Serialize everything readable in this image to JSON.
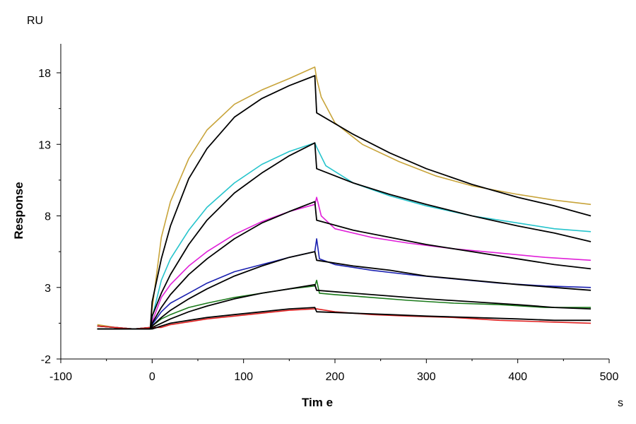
{
  "chart_data": {
    "type": "line",
    "title": "",
    "xlabel": "Tim e",
    "ylabel": "Response",
    "x_unit": "s",
    "y_unit": "RU",
    "xlim": [
      -100,
      500
    ],
    "ylim": [
      -2,
      20
    ],
    "x_ticks": [
      -100,
      0,
      100,
      200,
      300,
      400,
      500
    ],
    "y_ticks": [
      -2,
      3,
      8,
      13,
      18
    ],
    "grid": false,
    "legend": "none",
    "association_end": 180,
    "series": [
      {
        "color": "#c8a43a",
        "kind": "measured",
        "points": [
          [
            -60,
            0.4
          ],
          [
            -40,
            0.2
          ],
          [
            -20,
            0.1
          ],
          [
            -2,
            0.2
          ],
          [
            0,
            1.5
          ],
          [
            10,
            6.5
          ],
          [
            20,
            9.0
          ],
          [
            40,
            12.0
          ],
          [
            60,
            14.0
          ],
          [
            90,
            15.8
          ],
          [
            120,
            16.8
          ],
          [
            150,
            17.6
          ],
          [
            178,
            18.4
          ],
          [
            180,
            17.6
          ],
          [
            185,
            16.3
          ],
          [
            200,
            14.5
          ],
          [
            230,
            13.0
          ],
          [
            270,
            11.8
          ],
          [
            310,
            10.8
          ],
          [
            350,
            10.1
          ],
          [
            400,
            9.5
          ],
          [
            440,
            9.1
          ],
          [
            480,
            8.8
          ]
        ]
      },
      {
        "color": "#26c4cc",
        "kind": "measured",
        "points": [
          [
            -60,
            0.3
          ],
          [
            -40,
            0.2
          ],
          [
            -20,
            0.1
          ],
          [
            -2,
            0.2
          ],
          [
            0,
            0.9
          ],
          [
            10,
            3.5
          ],
          [
            20,
            5.0
          ],
          [
            40,
            7.0
          ],
          [
            60,
            8.6
          ],
          [
            90,
            10.3
          ],
          [
            120,
            11.6
          ],
          [
            150,
            12.5
          ],
          [
            178,
            13.1
          ],
          [
            180,
            12.8
          ],
          [
            190,
            11.5
          ],
          [
            220,
            10.3
          ],
          [
            260,
            9.4
          ],
          [
            300,
            8.7
          ],
          [
            350,
            8.0
          ],
          [
            400,
            7.5
          ],
          [
            440,
            7.1
          ],
          [
            480,
            6.9
          ]
        ]
      },
      {
        "color": "#e020d8",
        "kind": "measured",
        "points": [
          [
            -60,
            0.3
          ],
          [
            -40,
            0.2
          ],
          [
            -20,
            0.1
          ],
          [
            -2,
            0.2
          ],
          [
            0,
            0.6
          ],
          [
            10,
            2.3
          ],
          [
            20,
            3.2
          ],
          [
            40,
            4.5
          ],
          [
            60,
            5.5
          ],
          [
            90,
            6.7
          ],
          [
            120,
            7.6
          ],
          [
            150,
            8.3
          ],
          [
            178,
            8.8
          ],
          [
            180,
            9.3
          ],
          [
            185,
            8.0
          ],
          [
            200,
            7.1
          ],
          [
            240,
            6.5
          ],
          [
            280,
            6.1
          ],
          [
            330,
            5.7
          ],
          [
            380,
            5.4
          ],
          [
            430,
            5.1
          ],
          [
            480,
            4.9
          ]
        ]
      },
      {
        "color": "#1a20b0",
        "kind": "measured",
        "points": [
          [
            -60,
            0.3
          ],
          [
            -40,
            0.2
          ],
          [
            -20,
            0.1
          ],
          [
            -2,
            0.2
          ],
          [
            0,
            0.4
          ],
          [
            10,
            1.3
          ],
          [
            20,
            1.9
          ],
          [
            40,
            2.6
          ],
          [
            60,
            3.3
          ],
          [
            90,
            4.1
          ],
          [
            120,
            4.6
          ],
          [
            150,
            5.1
          ],
          [
            178,
            5.5
          ],
          [
            180,
            6.4
          ],
          [
            183,
            5.0
          ],
          [
            200,
            4.6
          ],
          [
            240,
            4.2
          ],
          [
            280,
            3.9
          ],
          [
            330,
            3.6
          ],
          [
            380,
            3.3
          ],
          [
            430,
            3.1
          ],
          [
            480,
            3.0
          ]
        ]
      },
      {
        "color": "#1a7a1a",
        "kind": "measured",
        "points": [
          [
            -60,
            0.3
          ],
          [
            -40,
            0.2
          ],
          [
            -20,
            0.1
          ],
          [
            -2,
            0.2
          ],
          [
            0,
            0.3
          ],
          [
            10,
            0.8
          ],
          [
            20,
            1.1
          ],
          [
            40,
            1.6
          ],
          [
            60,
            1.9
          ],
          [
            90,
            2.3
          ],
          [
            120,
            2.6
          ],
          [
            150,
            2.9
          ],
          [
            178,
            3.1
          ],
          [
            180,
            3.5
          ],
          [
            183,
            2.6
          ],
          [
            200,
            2.5
          ],
          [
            240,
            2.3
          ],
          [
            280,
            2.1
          ],
          [
            330,
            1.9
          ],
          [
            380,
            1.8
          ],
          [
            430,
            1.6
          ],
          [
            480,
            1.6
          ]
        ]
      },
      {
        "color": "#e02020",
        "kind": "measured",
        "points": [
          [
            -60,
            0.3
          ],
          [
            -40,
            0.2
          ],
          [
            -20,
            0.1
          ],
          [
            -2,
            0.2
          ],
          [
            0,
            0.2
          ],
          [
            10,
            0.2
          ],
          [
            20,
            0.4
          ],
          [
            40,
            0.6
          ],
          [
            60,
            0.8
          ],
          [
            90,
            1.0
          ],
          [
            120,
            1.2
          ],
          [
            150,
            1.4
          ],
          [
            178,
            1.5
          ],
          [
            180,
            1.5
          ],
          [
            200,
            1.3
          ],
          [
            240,
            1.1
          ],
          [
            280,
            1.0
          ],
          [
            330,
            0.9
          ],
          [
            380,
            0.7
          ],
          [
            430,
            0.6
          ],
          [
            480,
            0.5
          ]
        ]
      },
      {
        "color": "#000000",
        "kind": "fit",
        "points": [
          [
            -60,
            0.1
          ],
          [
            -2,
            0.1
          ],
          [
            0,
            2.0
          ],
          [
            10,
            5.0
          ],
          [
            20,
            7.3
          ],
          [
            40,
            10.6
          ],
          [
            60,
            12.7
          ],
          [
            90,
            14.9
          ],
          [
            120,
            16.2
          ],
          [
            150,
            17.1
          ],
          [
            178,
            17.8
          ],
          [
            180,
            15.2
          ],
          [
            220,
            13.7
          ],
          [
            260,
            12.4
          ],
          [
            300,
            11.3
          ],
          [
            350,
            10.2
          ],
          [
            400,
            9.3
          ],
          [
            440,
            8.7
          ],
          [
            480,
            8.0
          ]
        ]
      },
      {
        "color": "#000000",
        "kind": "fit",
        "points": [
          [
            -60,
            0.1
          ],
          [
            -2,
            0.1
          ],
          [
            0,
            1.0
          ],
          [
            10,
            2.6
          ],
          [
            20,
            3.9
          ],
          [
            40,
            6.0
          ],
          [
            60,
            7.7
          ],
          [
            90,
            9.6
          ],
          [
            120,
            11.0
          ],
          [
            150,
            12.2
          ],
          [
            178,
            13.1
          ],
          [
            180,
            11.3
          ],
          [
            220,
            10.3
          ],
          [
            260,
            9.5
          ],
          [
            300,
            8.8
          ],
          [
            350,
            8.0
          ],
          [
            400,
            7.3
          ],
          [
            440,
            6.8
          ],
          [
            480,
            6.2
          ]
        ]
      },
      {
        "color": "#000000",
        "kind": "fit",
        "points": [
          [
            -60,
            0.1
          ],
          [
            -2,
            0.1
          ],
          [
            0,
            0.5
          ],
          [
            10,
            1.6
          ],
          [
            20,
            2.5
          ],
          [
            40,
            3.9
          ],
          [
            60,
            5.0
          ],
          [
            90,
            6.4
          ],
          [
            120,
            7.5
          ],
          [
            150,
            8.3
          ],
          [
            178,
            9.0
          ],
          [
            180,
            7.7
          ],
          [
            220,
            7.0
          ],
          [
            260,
            6.5
          ],
          [
            300,
            6.0
          ],
          [
            350,
            5.5
          ],
          [
            400,
            5.0
          ],
          [
            440,
            4.6
          ],
          [
            480,
            4.3
          ]
        ]
      },
      {
        "color": "#000000",
        "kind": "fit",
        "points": [
          [
            -60,
            0.1
          ],
          [
            -2,
            0.1
          ],
          [
            0,
            0.3
          ],
          [
            10,
            0.9
          ],
          [
            20,
            1.4
          ],
          [
            40,
            2.2
          ],
          [
            60,
            2.9
          ],
          [
            90,
            3.8
          ],
          [
            120,
            4.5
          ],
          [
            150,
            5.1
          ],
          [
            178,
            5.5
          ],
          [
            180,
            4.9
          ],
          [
            220,
            4.5
          ],
          [
            260,
            4.2
          ],
          [
            300,
            3.8
          ],
          [
            350,
            3.5
          ],
          [
            400,
            3.2
          ],
          [
            440,
            3.0
          ],
          [
            480,
            2.8
          ]
        ]
      },
      {
        "color": "#000000",
        "kind": "fit",
        "points": [
          [
            -60,
            0.1
          ],
          [
            -2,
            0.1
          ],
          [
            0,
            0.2
          ],
          [
            10,
            0.5
          ],
          [
            20,
            0.8
          ],
          [
            40,
            1.3
          ],
          [
            60,
            1.7
          ],
          [
            90,
            2.2
          ],
          [
            120,
            2.6
          ],
          [
            150,
            2.9
          ],
          [
            178,
            3.2
          ],
          [
            180,
            2.8
          ],
          [
            220,
            2.6
          ],
          [
            260,
            2.4
          ],
          [
            300,
            2.2
          ],
          [
            350,
            2.0
          ],
          [
            400,
            1.8
          ],
          [
            440,
            1.6
          ],
          [
            480,
            1.5
          ]
        ]
      },
      {
        "color": "#000000",
        "kind": "fit",
        "points": [
          [
            -60,
            0.1
          ],
          [
            -2,
            0.1
          ],
          [
            0,
            0.1
          ],
          [
            10,
            0.3
          ],
          [
            20,
            0.5
          ],
          [
            40,
            0.7
          ],
          [
            60,
            0.9
          ],
          [
            90,
            1.1
          ],
          [
            120,
            1.3
          ],
          [
            150,
            1.5
          ],
          [
            178,
            1.6
          ],
          [
            180,
            1.3
          ],
          [
            220,
            1.2
          ],
          [
            260,
            1.1
          ],
          [
            300,
            1.0
          ],
          [
            350,
            0.9
          ],
          [
            400,
            0.8
          ],
          [
            440,
            0.7
          ],
          [
            480,
            0.7
          ]
        ]
      }
    ]
  }
}
